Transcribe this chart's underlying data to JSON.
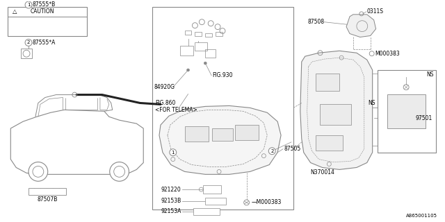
{
  "bg_color": "#ffffff",
  "line_color": "#888888",
  "text_color": "#000000",
  "fig_id": "A865001105",
  "fs": 5.5,
  "labels": {
    "p1_num": "1",
    "p1_name": "87555*B",
    "p2_num": "2",
    "p2_name": "87555*A",
    "caution": "CAUTION",
    "p3": "84920G",
    "p4": "FIG.930",
    "p5a": "FIG.860",
    "p5b": "<FOR TELEMA>",
    "p6": "87507B",
    "p7": "921220",
    "p8": "92153B",
    "p9": "92153A",
    "p10": "87505",
    "p11": "M000383",
    "p12": "M000383",
    "p13": "0311S",
    "p14": "87508",
    "p15": "M000383",
    "p16": "NS",
    "p17": "N370014",
    "p18": "97501"
  }
}
